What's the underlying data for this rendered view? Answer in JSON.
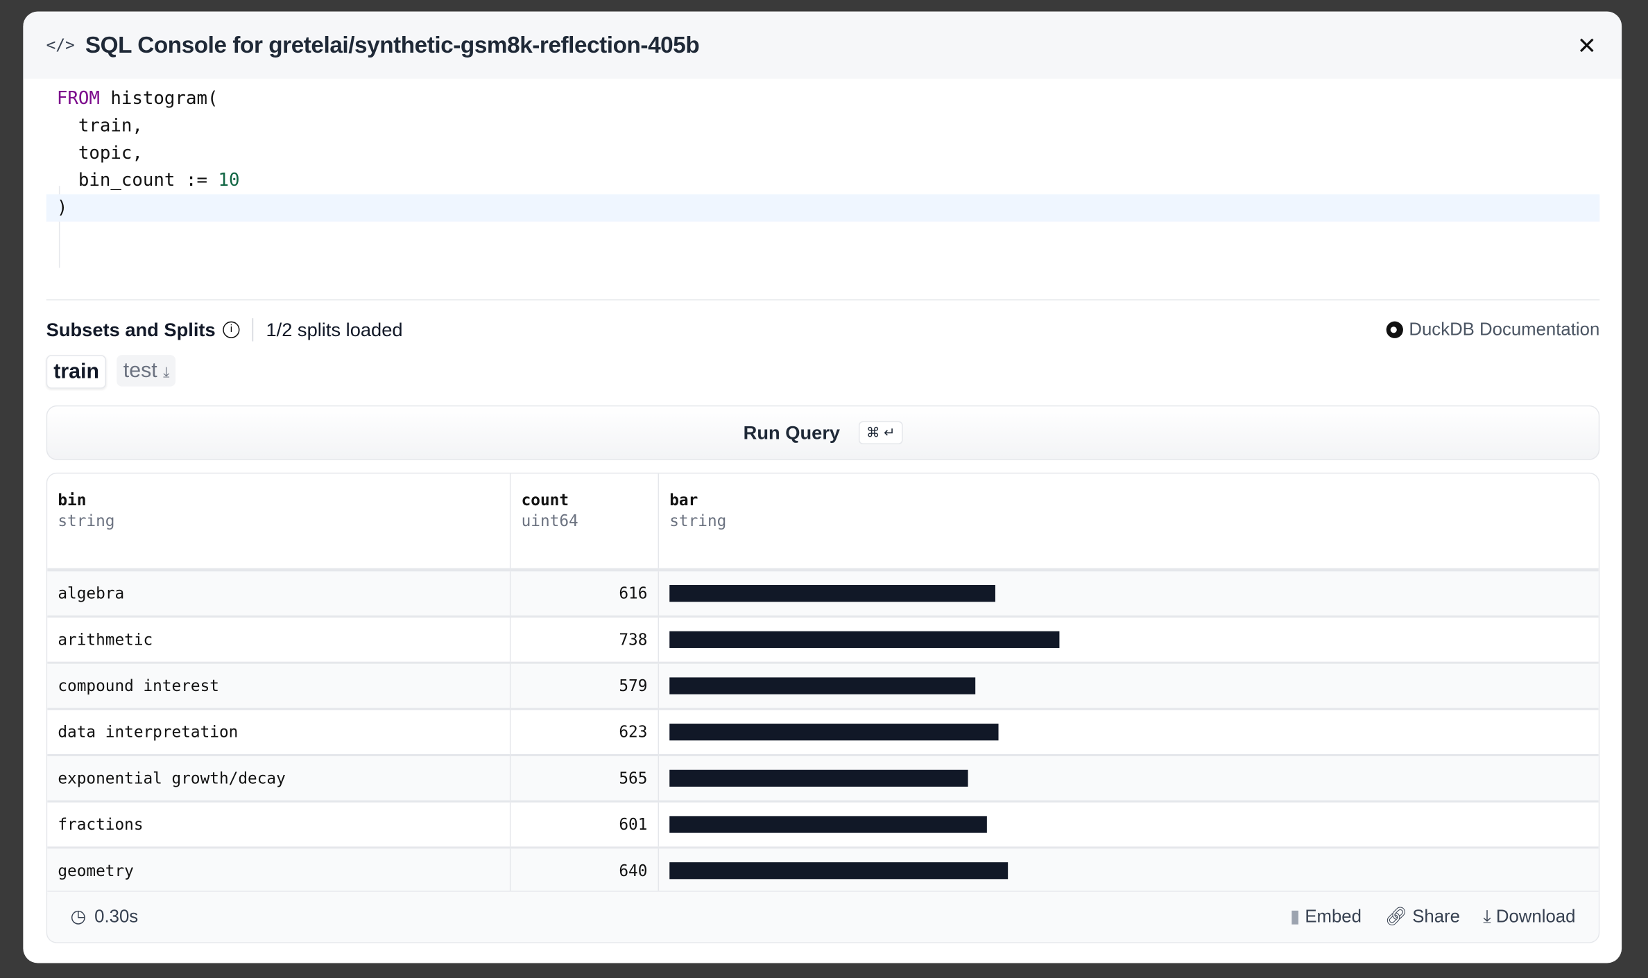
{
  "modal": {
    "title": "SQL Console for gretelai/synthetic-gsm8k-reflection-405b",
    "icon": "code-icon"
  },
  "editor": {
    "lines": [
      {
        "kw": "FROM",
        "text": " histogram("
      },
      {
        "text": "  train,"
      },
      {
        "text": "  topic,"
      },
      {
        "text": "  bin_count := ",
        "num": "10"
      },
      {
        "text": ")"
      }
    ]
  },
  "splits": {
    "heading": "Subsets and Splits",
    "status": "1/2 splits loaded",
    "docs_link": "DuckDB Documentation",
    "tabs": [
      {
        "label": "train",
        "active": true
      },
      {
        "label": "test",
        "active": false
      }
    ]
  },
  "run": {
    "label": "Run Query",
    "shortcut": "⌘ ↵"
  },
  "results": {
    "columns": [
      {
        "name": "bin",
        "type": "string"
      },
      {
        "name": "count",
        "type": "uint64"
      },
      {
        "name": "bar",
        "type": "string"
      }
    ],
    "rows": [
      {
        "bin": "algebra",
        "count": "616",
        "value": 616
      },
      {
        "bin": "arithmetic",
        "count": "738",
        "value": 738
      },
      {
        "bin": "compound interest",
        "count": "579",
        "value": 579
      },
      {
        "bin": "data interpretation",
        "count": "623",
        "value": 623
      },
      {
        "bin": "exponential growth/decay",
        "count": "565",
        "value": 565
      },
      {
        "bin": "fractions",
        "count": "601",
        "value": 601
      },
      {
        "bin": "geometry",
        "count": "640",
        "value": 640
      }
    ],
    "bar_color": "#111827"
  },
  "footer": {
    "time": "0.30s",
    "embed": "Embed",
    "share": "Share",
    "download": "Download"
  }
}
